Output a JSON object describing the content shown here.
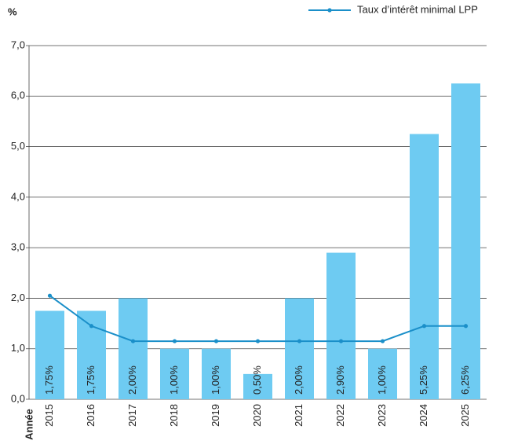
{
  "chart_data": {
    "type": "bar_line",
    "y_label": "%",
    "x_label": "Année",
    "categories": [
      "2015",
      "2016",
      "2017",
      "2018",
      "2019",
      "2020",
      "2021",
      "2022",
      "2023",
      "2024",
      "2025"
    ],
    "values": [
      1.75,
      1.75,
      2.0,
      1.0,
      1.0,
      0.5,
      2.0,
      2.9,
      1.0,
      5.25,
      6.25
    ],
    "value_labels": [
      "1,75%",
      "1,75%",
      "2,00%",
      "1,00%",
      "1,00%",
      "0,50%",
      "2,00%",
      "2,90%",
      "1,00%",
      "5,25%",
      "6,25%"
    ],
    "color": "#6ecbf2",
    "series": [
      {
        "name": "Taux d’intérêt minimal LPP",
        "color": "#1a8fc9",
        "values": [
          2.05,
          1.45,
          1.15,
          1.15,
          1.15,
          1.15,
          1.15,
          1.15,
          1.15,
          1.45,
          1.45
        ]
      }
    ],
    "ylim": [
      0,
      7
    ],
    "yticks": [
      {
        "value": 0,
        "label": "0,0"
      },
      {
        "value": 1,
        "label": "1,0"
      },
      {
        "value": 2,
        "label": "2,0"
      },
      {
        "value": 3,
        "label": "3,0"
      },
      {
        "value": 4,
        "label": "4,0"
      },
      {
        "value": 5,
        "label": "5,0"
      },
      {
        "value": 6,
        "label": "6,0"
      },
      {
        "value": 7,
        "label": "7,0"
      }
    ],
    "grid": true
  }
}
